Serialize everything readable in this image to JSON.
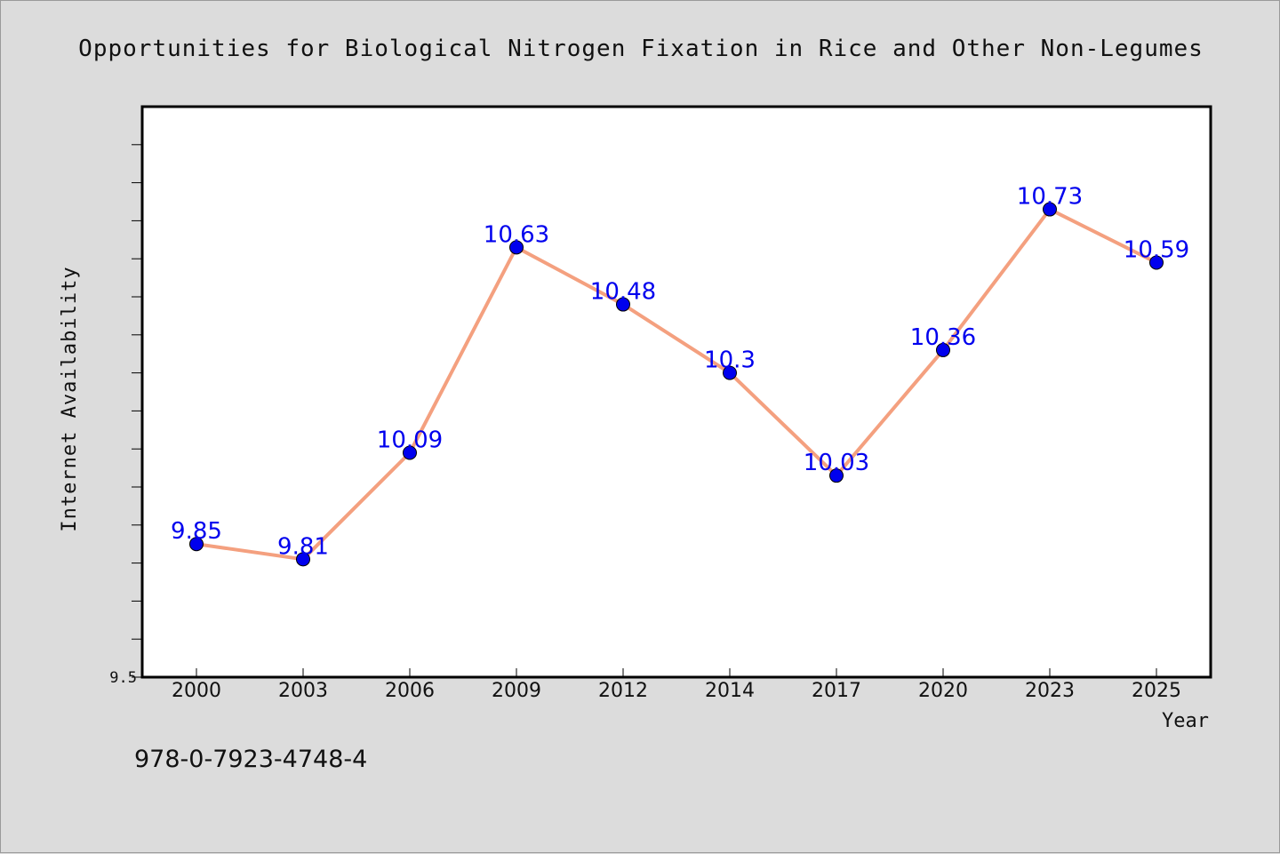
{
  "chart_data": {
    "type": "line",
    "title": "Opportunities for Biological Nitrogen Fixation in Rice and Other Non-Legumes",
    "xlabel": "Year",
    "ylabel": "Internet Availability",
    "categories": [
      "2000",
      "2003",
      "2006",
      "2009",
      "2012",
      "2014",
      "2017",
      "2020",
      "2023",
      "2025"
    ],
    "series": [
      {
        "values": [
          9.85,
          9.81,
          10.09,
          10.63,
          10.48,
          10.3,
          10.03,
          10.36,
          10.73,
          10.59
        ],
        "data_labels": [
          "9.85",
          "9.81",
          "10.09",
          "10.63",
          "10.48",
          "10.3",
          "10.03",
          "10.36",
          "10.73",
          "10.59"
        ],
        "line_color": "#f4a07f",
        "marker_color": "#0000ee"
      }
    ],
    "ylim": [
      9.5,
      11.0
    ],
    "y_tick_labels": [
      "9.5"
    ],
    "grid": false,
    "legend": "none"
  },
  "footer": {
    "isbn": "978-0-7923-4748-4"
  },
  "colors": {
    "background": "#dcdcdc",
    "plot_background": "#ffffff",
    "data_label": "#0000ee"
  }
}
